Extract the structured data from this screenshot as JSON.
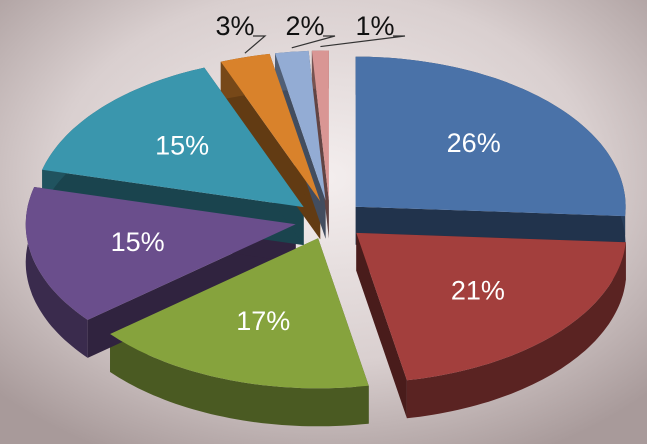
{
  "chart_data": {
    "type": "pie3d",
    "values": [
      26,
      21,
      17,
      15,
      15,
      3,
      2,
      1
    ],
    "value_labels": [
      "26%",
      "21%",
      "17%",
      "15%",
      "15%",
      "3%",
      "2%",
      "1%"
    ],
    "colors": [
      "#4a72a8",
      "#a33f3d",
      "#86a33d",
      "#6a4e8c",
      "#3a96ad",
      "#d9822b",
      "#93acd4",
      "#d99694"
    ]
  }
}
